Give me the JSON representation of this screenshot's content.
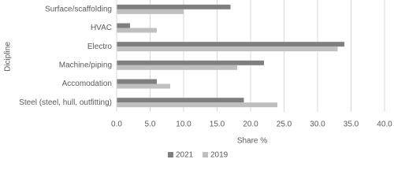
{
  "chart_data": {
    "type": "hbar",
    "categories": [
      "Surface/scaffolding",
      "HVAC",
      "Electro",
      "Machine/piping",
      "Accomodation",
      "Steel (steel, hull, outfitting)"
    ],
    "series": [
      {
        "name": "2021",
        "color": "#7f7f7f",
        "values": [
          17,
          2,
          34,
          22,
          6,
          19
        ]
      },
      {
        "name": "2019",
        "color": "#bfbfbf",
        "values": [
          10,
          6,
          33,
          18,
          8,
          24
        ]
      }
    ],
    "xlim": [
      0,
      40
    ],
    "xticks": [
      {
        "value": 0,
        "label": "0.0"
      },
      {
        "value": 5,
        "label": "5.0"
      },
      {
        "value": 10,
        "label": "10.0"
      },
      {
        "value": 15,
        "label": "15.0"
      },
      {
        "value": 20,
        "label": "20.0"
      },
      {
        "value": 25,
        "label": "25.0"
      },
      {
        "value": 30,
        "label": "30.0"
      },
      {
        "value": 35,
        "label": "35.0"
      },
      {
        "value": 40,
        "label": "40.0"
      }
    ],
    "x_label": "Share %",
    "y_label": "Dicipline",
    "grid": true,
    "legend": "bottom"
  }
}
